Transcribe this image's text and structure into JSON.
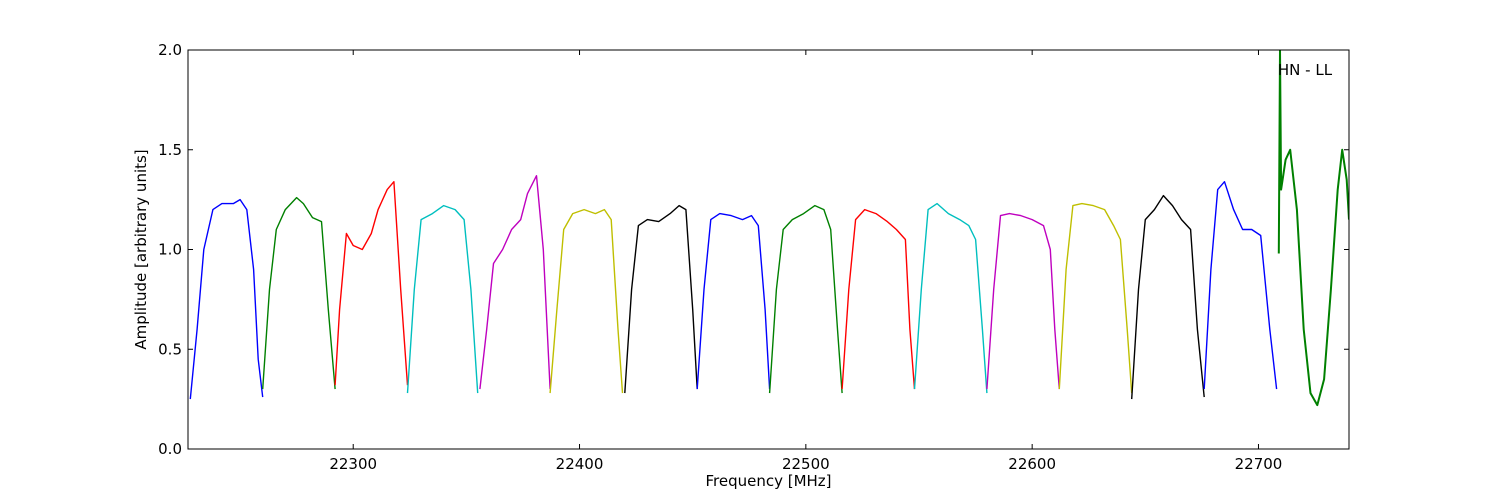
{
  "chart_data": {
    "type": "line",
    "title": "",
    "xlabel": "Frequency [MHz]",
    "ylabel": "Amplitude [arbitrary units]",
    "xlim": [
      22227,
      22740
    ],
    "ylim": [
      0,
      2.0
    ],
    "xticks": [
      22300,
      22400,
      22500,
      22600,
      22700
    ],
    "xtick_labels": [
      "22300",
      "22400",
      "22500",
      "22600",
      "22700"
    ],
    "yticks": [
      0,
      0.5,
      1.0,
      1.5,
      2.0
    ],
    "ytick_labels": [
      "0.0",
      "0.5",
      "1.0",
      "1.5",
      "2.0"
    ],
    "grid": false,
    "annotation": "HN - LL",
    "series": [
      {
        "color": "#0000ff",
        "x": [
          22228,
          22231,
          22234,
          22238,
          22242,
          22247,
          22250,
          22253,
          22256,
          22258,
          22260
        ],
        "y": [
          0.25,
          0.6,
          1.0,
          1.2,
          1.23,
          1.23,
          1.25,
          1.2,
          0.9,
          0.45,
          0.26
        ]
      },
      {
        "color": "#008000",
        "x": [
          22260,
          22263,
          22266,
          22270,
          22275,
          22278,
          22282,
          22286,
          22289,
          22292
        ],
        "y": [
          0.3,
          0.8,
          1.1,
          1.2,
          1.26,
          1.23,
          1.16,
          1.14,
          0.7,
          0.3
        ]
      },
      {
        "color": "#ff0000",
        "x": [
          22292,
          22294,
          22297,
          22300,
          22304,
          22308,
          22311,
          22315,
          22318,
          22321,
          22324
        ],
        "y": [
          0.32,
          0.7,
          1.08,
          1.02,
          1.0,
          1.08,
          1.2,
          1.3,
          1.34,
          0.8,
          0.32
        ]
      },
      {
        "color": "#00bfbf",
        "x": [
          22324,
          22327,
          22330,
          22335,
          22340,
          22345,
          22349,
          22352,
          22355
        ],
        "y": [
          0.28,
          0.8,
          1.15,
          1.18,
          1.22,
          1.2,
          1.15,
          0.8,
          0.28
        ]
      },
      {
        "color": "#bf00bf",
        "x": [
          22356,
          22359,
          22362,
          22366,
          22370,
          22374,
          22377,
          22381,
          22384,
          22387
        ],
        "y": [
          0.3,
          0.6,
          0.93,
          1.0,
          1.1,
          1.15,
          1.28,
          1.37,
          1.0,
          0.3
        ]
      },
      {
        "color": "#bfbf00",
        "x": [
          22387,
          22390,
          22393,
          22397,
          22402,
          22407,
          22411,
          22414,
          22417,
          22419
        ],
        "y": [
          0.28,
          0.7,
          1.1,
          1.18,
          1.2,
          1.18,
          1.2,
          1.15,
          0.6,
          0.28
        ]
      },
      {
        "color": "#000000",
        "x": [
          22420,
          22423,
          22426,
          22430,
          22435,
          22440,
          22444,
          22447,
          22450,
          22452
        ],
        "y": [
          0.28,
          0.8,
          1.12,
          1.15,
          1.14,
          1.18,
          1.22,
          1.2,
          0.7,
          0.3
        ]
      },
      {
        "color": "#0000ff",
        "x": [
          22452,
          22455,
          22458,
          22462,
          22467,
          22472,
          22476,
          22479,
          22482,
          22484
        ],
        "y": [
          0.3,
          0.8,
          1.15,
          1.18,
          1.17,
          1.15,
          1.17,
          1.12,
          0.7,
          0.3
        ]
      },
      {
        "color": "#008000",
        "x": [
          22484,
          22487,
          22490,
          22494,
          22499,
          22504,
          22508,
          22511,
          22514,
          22516
        ],
        "y": [
          0.28,
          0.8,
          1.1,
          1.15,
          1.18,
          1.22,
          1.2,
          1.1,
          0.6,
          0.28
        ]
      },
      {
        "color": "#ff0000",
        "x": [
          22516,
          22519,
          22522,
          22526,
          22531,
          22536,
          22540,
          22544,
          22546,
          22548
        ],
        "y": [
          0.3,
          0.8,
          1.15,
          1.2,
          1.18,
          1.14,
          1.1,
          1.05,
          0.6,
          0.3
        ]
      },
      {
        "color": "#00bfbf",
        "x": [
          22548,
          22551,
          22554,
          22558,
          22563,
          22568,
          22572,
          22575,
          22578,
          22580
        ],
        "y": [
          0.3,
          0.8,
          1.2,
          1.23,
          1.18,
          1.15,
          1.12,
          1.05,
          0.6,
          0.28
        ]
      },
      {
        "color": "#bf00bf",
        "x": [
          22580,
          22583,
          22586,
          22590,
          22595,
          22600,
          22605,
          22608,
          22610,
          22612
        ],
        "y": [
          0.3,
          0.8,
          1.17,
          1.18,
          1.17,
          1.15,
          1.12,
          1.0,
          0.6,
          0.3
        ]
      },
      {
        "color": "#bfbf00",
        "x": [
          22612,
          22615,
          22618,
          22622,
          22627,
          22632,
          22636,
          22639,
          22642,
          22644
        ],
        "y": [
          0.3,
          0.9,
          1.22,
          1.23,
          1.22,
          1.2,
          1.12,
          1.05,
          0.6,
          0.28
        ]
      },
      {
        "color": "#000000",
        "x": [
          22644,
          22647,
          22650,
          22654,
          22658,
          22662,
          22666,
          22670,
          22673,
          22676
        ],
        "y": [
          0.25,
          0.8,
          1.15,
          1.2,
          1.27,
          1.22,
          1.15,
          1.1,
          0.6,
          0.26
        ]
      },
      {
        "color": "#0000ff",
        "x": [
          22676,
          22679,
          22682,
          22685,
          22689,
          22693,
          22697,
          22701,
          22705,
          22708
        ],
        "y": [
          0.3,
          0.9,
          1.3,
          1.34,
          1.2,
          1.1,
          1.1,
          1.07,
          0.6,
          0.3
        ]
      },
      {
        "color": "#008000",
        "x": [
          22709,
          22709.5,
          22710,
          22712,
          22714,
          22717,
          22720,
          22723,
          22726,
          22729,
          22732,
          22735,
          22737,
          22739,
          22740
        ],
        "y": [
          0.98,
          2.0,
          1.3,
          1.45,
          1.5,
          1.2,
          0.6,
          0.28,
          0.22,
          0.35,
          0.8,
          1.3,
          1.5,
          1.35,
          1.15
        ]
      }
    ]
  }
}
